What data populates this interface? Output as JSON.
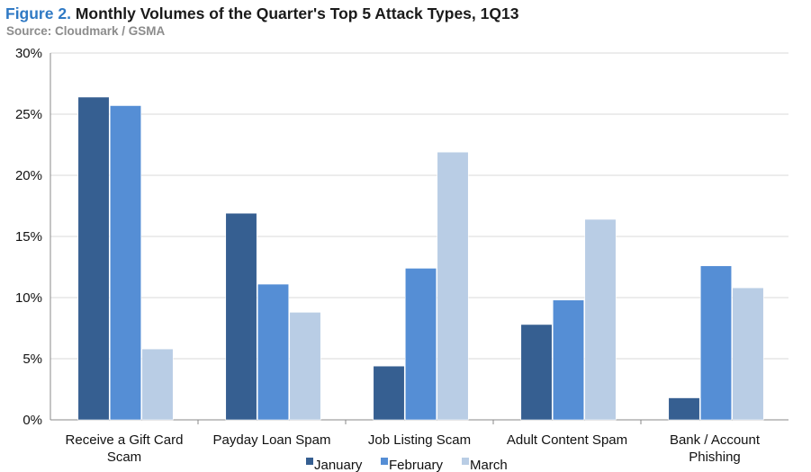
{
  "header": {
    "figure_label": "Figure 2.",
    "title": "Monthly Volumes of the Quarter's Top 5 Attack Types, 1Q13",
    "source": "Source: Cloudmark / GSMA"
  },
  "chart_data": {
    "type": "bar",
    "title": "Monthly Volumes of the Quarter's Top 5 Attack Types, 1Q13",
    "xlabel": "",
    "ylabel": "",
    "ylim": [
      0,
      30
    ],
    "yticks": [
      0,
      5,
      10,
      15,
      20,
      25,
      30
    ],
    "ytick_labels": [
      "0%",
      "5%",
      "10%",
      "15%",
      "20%",
      "25%",
      "30%"
    ],
    "grid": true,
    "legend_position": "bottom",
    "categories": [
      [
        "Receive a Gift Card",
        "Scam"
      ],
      [
        "Payday Loan Spam"
      ],
      [
        "Job Listing Scam"
      ],
      [
        "Adult Content Spam"
      ],
      [
        "Bank / Account",
        "Phishing"
      ]
    ],
    "series": [
      {
        "name": "January",
        "color": "#365f91",
        "values": [
          26.4,
          16.9,
          4.4,
          7.8,
          1.8
        ]
      },
      {
        "name": "February",
        "color": "#558ed5",
        "values": [
          25.7,
          11.1,
          12.4,
          9.8,
          12.6
        ]
      },
      {
        "name": "March",
        "color": "#b9cde5",
        "values": [
          5.8,
          8.8,
          21.9,
          16.4,
          10.8
        ]
      }
    ]
  }
}
